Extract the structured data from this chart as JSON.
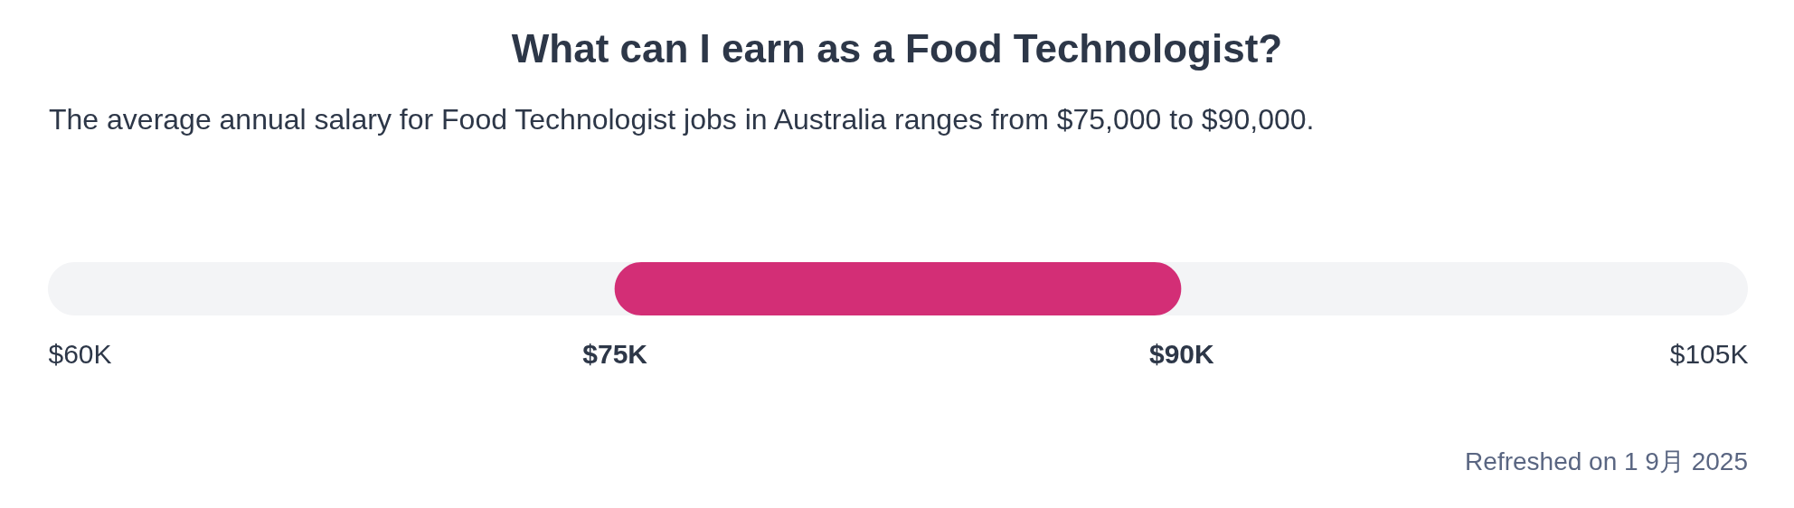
{
  "chart_data": {
    "type": "bar",
    "title": "What can I earn as a Food Technologist?",
    "subtitle": "The average annual salary for Food Technologist jobs in Australia ranges from $75,000 to $90,000.",
    "annotations": [
      "Refreshed on 1 9月 2025"
    ],
    "orientation": "horizontal",
    "categories": [
      null
    ],
    "base": [
      75000
    ],
    "values": [
      15000
    ],
    "color": "#d32e76",
    "xlim": [
      60000,
      105000
    ],
    "xticks": [
      {
        "value": 60000,
        "label": "$60K"
      },
      {
        "value": 75000,
        "label": "$75K"
      },
      {
        "value": 90000,
        "label": "$90K"
      },
      {
        "value": 105000,
        "label": "$105K"
      }
    ]
  }
}
